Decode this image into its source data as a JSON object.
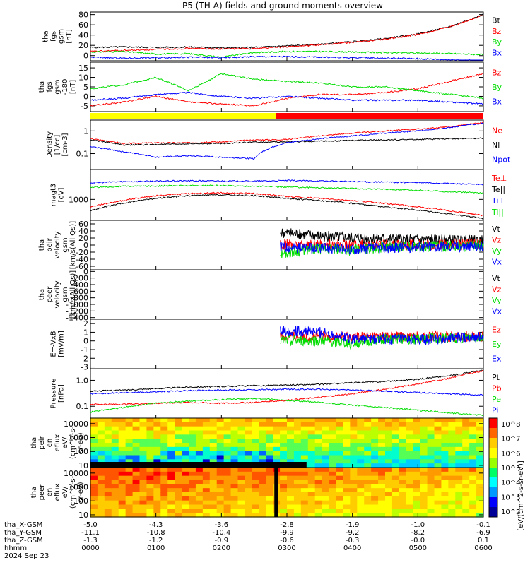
{
  "title": "P5 (TH-A) fields and ground moments overview",
  "colors": {
    "black": "#000000",
    "red": "#ff0000",
    "green": "#00dd00",
    "blue": "#0000ff"
  },
  "chart_data": [
    {
      "type": "line",
      "panel": "fgs",
      "ylabel": [
        "tha",
        "fgs",
        "gsm",
        "[nT]"
      ],
      "yticks": [
        "80",
        "60",
        "40",
        "20",
        "0"
      ],
      "ylim": [
        -10,
        85
      ],
      "legend": [
        "Bt",
        "Bz",
        "By",
        "Bx"
      ],
      "series": [
        {
          "name": "Bt",
          "color": "black",
          "x": [
            0,
            0.5,
            1,
            1.5,
            2,
            2.5,
            3,
            3.5,
            4,
            4.5,
            5,
            5.5,
            6
          ],
          "values": [
            16,
            17,
            16,
            17,
            15,
            16,
            19,
            22,
            27,
            33,
            42,
            57,
            80
          ]
        },
        {
          "name": "Bz",
          "color": "red",
          "x": [
            0,
            0.5,
            1,
            1.5,
            2,
            2.5,
            3,
            3.5,
            4,
            4.5,
            5,
            5.5,
            6
          ],
          "values": [
            8,
            10,
            12,
            14,
            13,
            14,
            17,
            21,
            26,
            32,
            41,
            56,
            79
          ]
        },
        {
          "name": "By",
          "color": "green",
          "x": [
            0,
            0.5,
            1,
            1.5,
            2,
            2.5,
            3,
            3.5,
            4,
            4.5,
            5,
            5.5,
            6
          ],
          "values": [
            7,
            8,
            3,
            4,
            -3,
            6,
            8,
            8,
            7,
            6,
            5,
            4,
            2
          ]
        },
        {
          "name": "Bx",
          "color": "blue",
          "x": [
            0,
            0.5,
            1,
            1.5,
            2,
            2.5,
            3,
            3.5,
            4,
            4.5,
            5,
            5.5,
            6
          ],
          "values": [
            -3,
            -5,
            -4,
            -3,
            -4,
            -2,
            -2,
            -3,
            -4,
            -5,
            -6,
            -8,
            -10
          ]
        }
      ]
    },
    {
      "type": "line",
      "panel": "fgs-dsl",
      "ylabel": [
        "tha",
        "fgs",
        "gsm",
        "-180",
        "[nT]"
      ],
      "yticks": [
        "15",
        "10",
        "5",
        "0",
        "-5"
      ],
      "ylim": [
        -8,
        18
      ],
      "legend": [
        "Bz",
        "By",
        "Bx"
      ],
      "series": [
        {
          "name": "Bz",
          "color": "red",
          "x": [
            0,
            0.5,
            1,
            1.5,
            2,
            2.5,
            3,
            3.5,
            4,
            4.5,
            5,
            5.5,
            6
          ],
          "values": [
            -5,
            -3,
            0,
            -3,
            -4,
            -5,
            -1,
            1,
            1,
            2,
            4,
            8,
            12
          ]
        },
        {
          "name": "By",
          "color": "green",
          "x": [
            0,
            0.5,
            1,
            1.5,
            2,
            2.5,
            3,
            3.5,
            4,
            4.5,
            5,
            5.5,
            6
          ],
          "values": [
            4,
            6,
            10,
            3,
            12,
            9,
            8,
            7,
            5,
            5,
            3,
            1,
            -1
          ]
        },
        {
          "name": "Bx",
          "color": "blue",
          "x": [
            0,
            0.5,
            1,
            1.5,
            2,
            2.5,
            3,
            3.5,
            4,
            4.5,
            5,
            5.5,
            6
          ],
          "values": [
            -2,
            -1,
            1,
            2,
            0,
            -1,
            0,
            -1,
            -2,
            -2,
            -2,
            -3,
            -4
          ]
        }
      ]
    },
    {
      "type": "line",
      "panel": "density",
      "ylabel": [
        "Density",
        "[1/cc]",
        "[cm-3]"
      ],
      "yticks": [
        "1",
        "0.1"
      ],
      "ylim": [
        0.02,
        3
      ],
      "log": true,
      "legend": [
        "Ne",
        "Ni",
        "Npot"
      ],
      "series": [
        {
          "name": "Ne",
          "color": "red",
          "x": [
            0,
            0.5,
            1,
            1.5,
            2,
            2.5,
            3,
            3.5,
            4,
            4.5,
            5,
            5.5,
            6
          ],
          "values": [
            0.45,
            0.28,
            0.3,
            0.3,
            0.33,
            0.4,
            0.42,
            0.6,
            0.8,
            1.0,
            1.2,
            1.5,
            2.3
          ]
        },
        {
          "name": "Ni",
          "color": "black",
          "x": [
            0,
            0.5,
            1,
            1.5,
            2,
            2.5,
            3,
            3.5,
            4,
            4.5,
            5,
            5.5,
            6
          ],
          "values": [
            0.4,
            0.24,
            0.25,
            0.27,
            0.28,
            0.32,
            0.33,
            0.35,
            0.38,
            0.4,
            0.42,
            0.45,
            0.48
          ]
        },
        {
          "name": "Npot",
          "color": "blue",
          "x": [
            0,
            0.5,
            1,
            1.5,
            2,
            2.5,
            3,
            3.5,
            4,
            4.5,
            5,
            5.5,
            6
          ],
          "values": [
            0.2,
            0.12,
            0.07,
            0.08,
            0.07,
            0.06,
            0.3,
            0.45,
            0.6,
            0.8,
            1.0,
            1.4,
            2.2
          ]
        }
      ]
    },
    {
      "type": "line",
      "panel": "temperature",
      "ylabel": [
        "magt3",
        "[eV]"
      ],
      "yticks": [
        "1000"
      ],
      "ylim": [
        150,
        15000
      ],
      "log": true,
      "legend": [
        "Te⊥",
        "Te||",
        "Ti⊥",
        "Ti||"
      ],
      "series": [
        {
          "name": "Te⊥",
          "color": "red",
          "x": [
            0,
            0.5,
            1,
            1.5,
            2,
            2.5,
            3,
            3.5,
            4,
            4.5,
            5,
            5.5,
            6
          ],
          "values": [
            500,
            900,
            1400,
            1700,
            1800,
            1700,
            1300,
            1100,
            900,
            700,
            500,
            350,
            230
          ]
        },
        {
          "name": "Te||",
          "color": "black",
          "x": [
            0,
            0.5,
            1,
            1.5,
            2,
            2.5,
            3,
            3.5,
            4,
            4.5,
            5,
            5.5,
            6
          ],
          "values": [
            350,
            700,
            1100,
            1400,
            1500,
            1400,
            1100,
            900,
            700,
            500,
            380,
            260,
            180
          ]
        },
        {
          "name": "Ti⊥",
          "color": "blue",
          "x": [
            0,
            0.5,
            1,
            1.5,
            2,
            2.5,
            3,
            3.5,
            4,
            4.5,
            5,
            5.5,
            6
          ],
          "values": [
            4500,
            5000,
            5200,
            5400,
            5300,
            5200,
            5500,
            5300,
            5000,
            4800,
            4600,
            4200,
            3800
          ]
        },
        {
          "name": "Ti||",
          "color": "green",
          "x": [
            0,
            0.5,
            1,
            1.5,
            2,
            2.5,
            3,
            3.5,
            4,
            4.5,
            5,
            5.5,
            6
          ],
          "values": [
            3000,
            3300,
            3400,
            3500,
            3500,
            3300,
            3100,
            2900,
            2700,
            2500,
            2300,
            2000,
            1800
          ]
        }
      ]
    },
    {
      "type": "line",
      "panel": "peir-velocity",
      "ylabel": [
        "tha",
        "peir",
        "velocity",
        "gsm",
        "[km/s(All Qs)]"
      ],
      "yticks": [
        "60",
        "40",
        "20",
        "0",
        "-20",
        "-40",
        "-60"
      ],
      "ylim": [
        -70,
        70
      ],
      "legend": [
        "Vt",
        "Vz",
        "Vy",
        "Vx"
      ],
      "series": [
        {
          "name": "Vt",
          "color": "black",
          "x": [
            2.9,
            3.2,
            3.6,
            4,
            4.5,
            5,
            5.5,
            6
          ],
          "values": [
            35,
            30,
            25,
            20,
            18,
            15,
            14,
            12
          ]
        },
        {
          "name": "Vz",
          "color": "red",
          "x": [
            2.9,
            3.2,
            3.6,
            4,
            4.5,
            5,
            5.5,
            6
          ],
          "values": [
            2,
            0,
            2,
            0,
            1,
            0,
            2,
            3
          ]
        },
        {
          "name": "Vy",
          "color": "green",
          "x": [
            2.9,
            3.2,
            3.6,
            4,
            4.5,
            5,
            5.5,
            6
          ],
          "values": [
            -25,
            -15,
            -10,
            -15,
            -5,
            -4,
            -3,
            -2
          ]
        },
        {
          "name": "Vx",
          "color": "blue",
          "x": [
            2.9,
            3.2,
            3.6,
            4,
            4.5,
            5,
            5.5,
            6
          ],
          "values": [
            -5,
            -8,
            -10,
            -12,
            -8,
            -5,
            -4,
            -3
          ]
        }
      ]
    },
    {
      "type": "line",
      "panel": "peer-velocity",
      "ylabel": [
        "tha",
        "peer",
        "velocity",
        "gsm",
        "[km/s(All Qs)]"
      ],
      "yticks": [
        "0",
        "-200",
        "-400",
        "-600",
        "-800",
        "-1000",
        "-1200",
        "-1400"
      ],
      "ylim": [
        -1450,
        50
      ],
      "legend": [
        "Vt",
        "Vz",
        "Vy",
        "Vx"
      ],
      "series": []
    },
    {
      "type": "line",
      "panel": "efield",
      "ylabel": [
        "E=-VxB",
        "[mV/m]"
      ],
      "yticks": [
        "2",
        "1",
        "0",
        "-1",
        "-2",
        "-3"
      ],
      "ylim": [
        -3.2,
        2.5
      ],
      "legend": [
        "Ez",
        "Ey",
        "Ex"
      ],
      "series": [
        {
          "name": "Ez",
          "color": "red",
          "x": [
            2.9,
            3.5,
            4,
            4.5,
            5,
            5.5,
            6
          ],
          "values": [
            0.5,
            0.5,
            0.5,
            0.5,
            0.5,
            0.5,
            0.5
          ]
        },
        {
          "name": "Ey",
          "color": "green",
          "x": [
            2.9,
            3.5,
            4,
            4.5,
            5,
            5.5,
            6
          ],
          "values": [
            0,
            0,
            -0.3,
            0.3,
            0.2,
            0.3,
            0.4
          ]
        },
        {
          "name": "Ex",
          "color": "blue",
          "x": [
            2.9,
            3.5,
            4,
            4.5,
            5,
            5.5,
            6
          ],
          "values": [
            1.2,
            1.0,
            0.3,
            0.2,
            0.1,
            0.3,
            0.5
          ]
        }
      ]
    },
    {
      "type": "line",
      "panel": "pressure",
      "ylabel": [
        "Pressure",
        "[nPa]"
      ],
      "yticks": [
        "1.0",
        "0.1"
      ],
      "ylim": [
        0.035,
        2.8
      ],
      "log": true,
      "legend": [
        "Pt",
        "Pb",
        "Pe",
        "Pi"
      ],
      "series": [
        {
          "name": "Pt",
          "color": "black",
          "x": [
            0,
            0.5,
            1,
            1.5,
            2,
            2.5,
            3,
            3.5,
            4,
            4.5,
            5,
            5.5,
            6
          ],
          "values": [
            0.38,
            0.42,
            0.48,
            0.55,
            0.58,
            0.62,
            0.65,
            0.7,
            0.8,
            0.9,
            1.1,
            1.5,
            2.4
          ]
        },
        {
          "name": "Pb",
          "color": "red",
          "x": [
            0,
            0.5,
            1,
            1.5,
            2,
            2.5,
            3,
            3.5,
            4,
            4.5,
            5,
            5.5,
            6
          ],
          "values": [
            0.12,
            0.12,
            0.13,
            0.14,
            0.13,
            0.14,
            0.17,
            0.22,
            0.3,
            0.45,
            0.7,
            1.2,
            2.3
          ]
        },
        {
          "name": "Pe",
          "color": "green",
          "x": [
            0,
            0.5,
            1,
            1.5,
            2,
            2.5,
            3,
            3.5,
            4,
            4.5,
            5,
            5.5,
            6
          ],
          "values": [
            0.06,
            0.09,
            0.13,
            0.16,
            0.18,
            0.2,
            0.17,
            0.14,
            0.11,
            0.09,
            0.07,
            0.055,
            0.045
          ]
        },
        {
          "name": "Pi",
          "color": "blue",
          "x": [
            0,
            0.5,
            1,
            1.5,
            2,
            2.5,
            3,
            3.5,
            4,
            4.5,
            5,
            5.5,
            6
          ],
          "values": [
            0.3,
            0.33,
            0.36,
            0.4,
            0.42,
            0.43,
            0.45,
            0.45,
            0.42,
            0.38,
            0.34,
            0.3,
            0.27
          ]
        }
      ]
    },
    {
      "type": "heatmap",
      "panel": "peir-eflux",
      "ylabel": [
        "tha",
        "peir",
        "en",
        "eflux",
        "eV/",
        "(cm^2-s-",
        "sr-eV)"
      ],
      "yticks": [
        "10000",
        "1000",
        "100",
        "10"
      ],
      "ylim": [
        7,
        25000
      ],
      "log": true
    },
    {
      "type": "heatmap",
      "panel": "peer-eflux",
      "ylabel": [
        "tha",
        "peer",
        "en",
        "eflux",
        "eV/",
        "(cm^2-s-",
        "sr-eV)"
      ],
      "yticks": [
        "10000",
        "1000",
        "100",
        "10"
      ],
      "ylim": [
        7,
        25000
      ],
      "log": true
    }
  ],
  "mode_bar": [
    {
      "x0": 0,
      "x1": 2.83,
      "color": "#ffff00"
    },
    {
      "x0": 2.83,
      "x1": 6,
      "color": "#ff0000"
    }
  ],
  "colorbar": {
    "label": "[eV/(cm^2-s-sr-eV)]",
    "ticks": [
      "10^8",
      "10^7",
      "10^6",
      "10^5",
      "10^4",
      "10^3",
      "10^2"
    ]
  },
  "xaxis": {
    "rows": [
      {
        "label": "tha_X-GSM",
        "values": [
          "-5.0",
          "-4.3",
          "-3.6",
          "-2.8",
          "-1.9",
          "-1.0",
          "-0.1"
        ]
      },
      {
        "label": "tha_Y-GSM",
        "values": [
          "-11.1",
          "-10.8",
          "-10.4",
          "-9.9",
          "-9.2",
          "-8.2",
          "-6.9"
        ]
      },
      {
        "label": "tha_Z-GSM",
        "values": [
          "-1.3",
          "-1.2",
          "-0.9",
          "-0.6",
          "-0.3",
          "-0.0",
          "0.1"
        ]
      },
      {
        "label": "hhmm",
        "values": [
          "0000",
          "0100",
          "0200",
          "0300",
          "0400",
          "0500",
          "0600"
        ]
      }
    ],
    "date": "2024 Sep 23"
  }
}
